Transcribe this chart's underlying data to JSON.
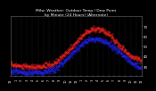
{
  "title": "Milw. Weather: Outdoor Temp / Dew Point",
  "subtitle": "by Minute (24 Hours) (Alternate)",
  "bg_color": "#000000",
  "plot_bg_color": "#000000",
  "grid_color": "#444444",
  "temp_color": "#ff2222",
  "dew_color": "#2222ff",
  "ylim": [
    20,
    80
  ],
  "xlim": [
    0,
    1440
  ],
  "yticks": [
    30,
    40,
    50,
    60,
    70
  ],
  "title_color": "#ffffff",
  "tick_color": "#ffffff",
  "title_fontsize": 3.2,
  "xtick_fontsize": 2.5,
  "ytick_fontsize": 2.8,
  "num_points": 1440,
  "temp_keypoints_x": [
    0,
    120,
    240,
    360,
    480,
    600,
    720,
    840,
    960,
    1080,
    1200,
    1320,
    1440
  ],
  "temp_keypoints_y": [
    32,
    30,
    29,
    30,
    33,
    42,
    54,
    65,
    68,
    62,
    50,
    40,
    35
  ],
  "dew_keypoints_x": [
    0,
    120,
    240,
    360,
    480,
    600,
    720,
    840,
    960,
    1080,
    1200,
    1320,
    1440
  ],
  "dew_keypoints_y": [
    25,
    24,
    23,
    24,
    27,
    36,
    47,
    56,
    58,
    53,
    44,
    34,
    28
  ]
}
